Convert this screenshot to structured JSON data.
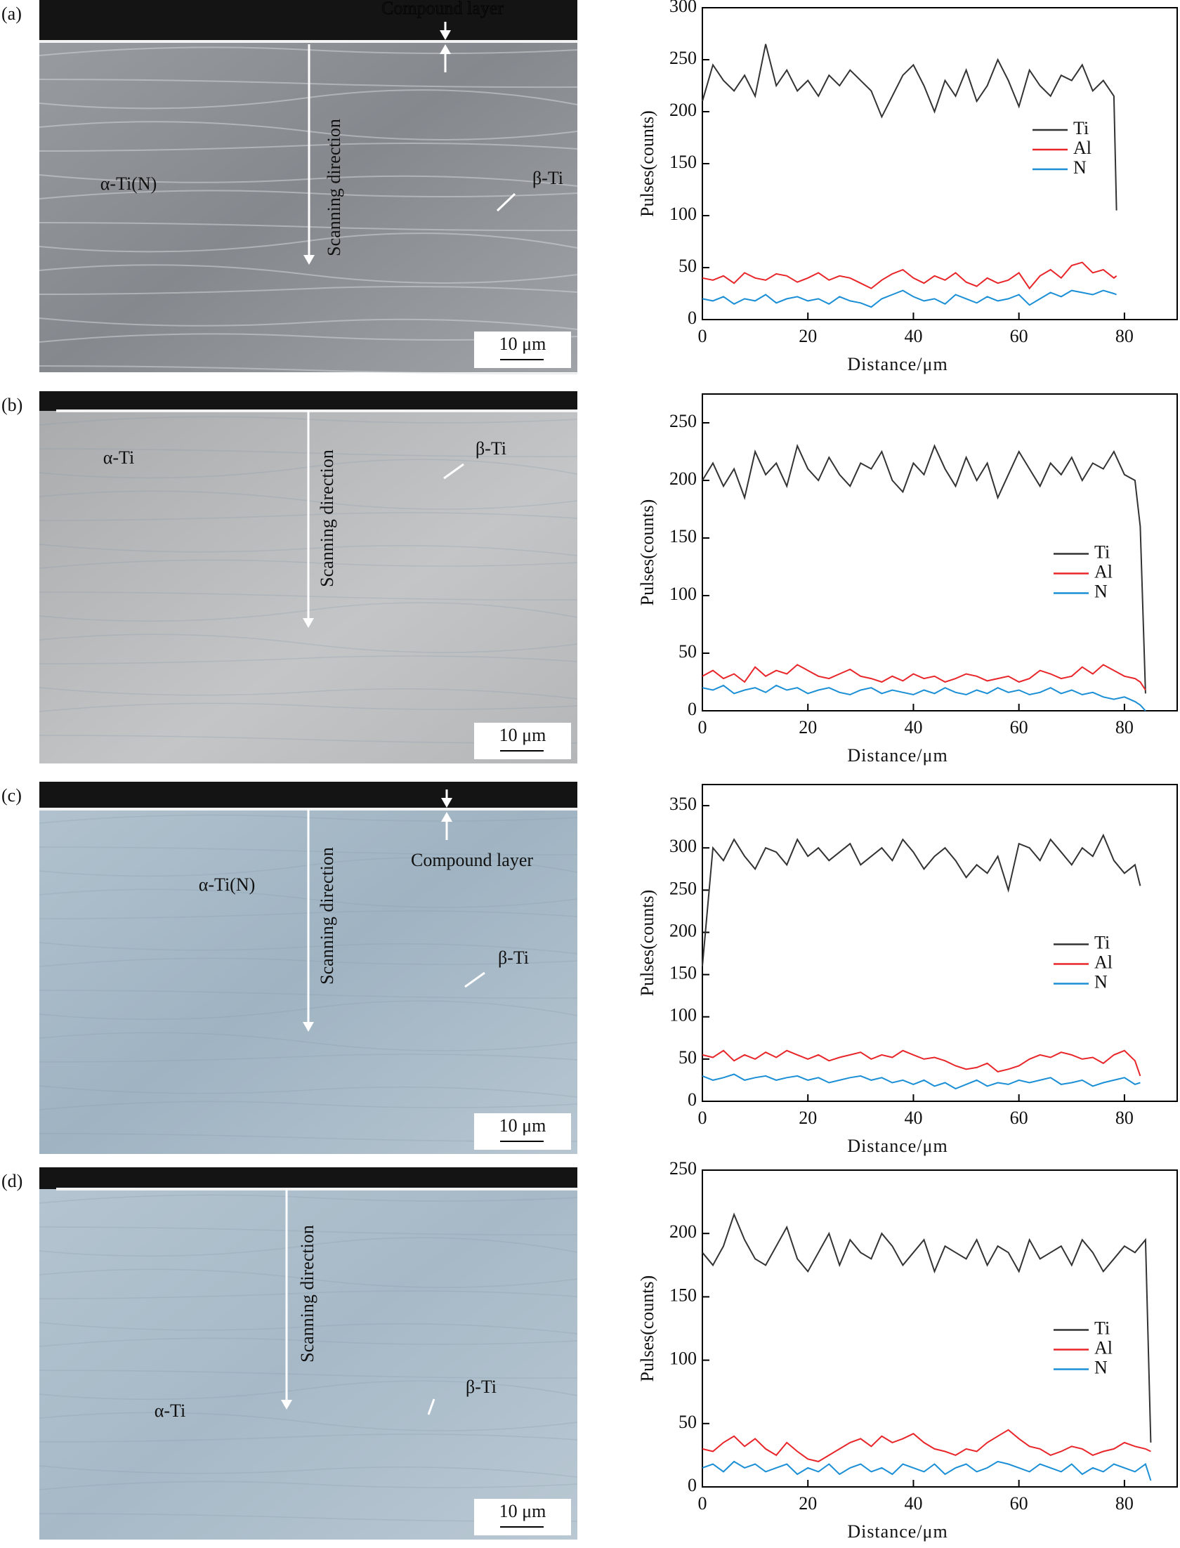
{
  "micrographs": [
    {
      "panel": "(a)",
      "labels": [
        "Compound layer",
        "Scanning direction",
        "α-Ti(N)",
        "β-Ti"
      ],
      "scale_bar": "10 μm"
    },
    {
      "panel": "(b)",
      "labels": [
        "Scanning direction",
        "α-Ti",
        "β-Ti"
      ],
      "scale_bar": "10 μm"
    },
    {
      "panel": "(c)",
      "labels": [
        "Compound layer",
        "Scanning direction",
        "α-Ti(N)",
        "β-Ti"
      ],
      "scale_bar": "10 μm"
    },
    {
      "panel": "(d)",
      "labels": [
        "Scanning direction",
        "α-Ti",
        "β-Ti"
      ],
      "scale_bar": "10 μm"
    }
  ],
  "chart_data": [
    {
      "type": "line",
      "xlabel": "Distance/μm",
      "ylabel": "Pulses(counts)",
      "xlim": [
        0,
        90
      ],
      "ylim": [
        0,
        300
      ],
      "xticks": [
        0,
        20,
        40,
        60,
        80
      ],
      "yticks": [
        0,
        50,
        100,
        150,
        200,
        250,
        300
      ],
      "x": [
        0,
        2,
        4,
        6,
        8,
        10,
        12,
        14,
        16,
        18,
        20,
        22,
        24,
        26,
        28,
        30,
        32,
        34,
        36,
        38,
        40,
        42,
        44,
        46,
        48,
        50,
        52,
        54,
        56,
        58,
        60,
        62,
        64,
        66,
        68,
        70,
        72,
        74,
        76,
        78,
        78.5
      ],
      "series": [
        {
          "name": "Ti",
          "color": "#333333",
          "values": [
            210,
            245,
            230,
            220,
            235,
            215,
            265,
            225,
            240,
            220,
            230,
            215,
            235,
            225,
            240,
            230,
            220,
            195,
            215,
            235,
            245,
            225,
            200,
            230,
            215,
            240,
            210,
            225,
            250,
            230,
            205,
            240,
            225,
            215,
            235,
            230,
            245,
            220,
            230,
            215,
            105
          ]
        },
        {
          "name": "Al",
          "color": "#e8262a",
          "values": [
            40,
            38,
            42,
            35,
            45,
            40,
            38,
            44,
            42,
            36,
            40,
            45,
            38,
            42,
            40,
            35,
            30,
            38,
            44,
            48,
            40,
            35,
            42,
            38,
            45,
            36,
            32,
            40,
            35,
            38,
            45,
            30,
            42,
            48,
            40,
            52,
            55,
            45,
            48,
            40,
            42
          ]
        },
        {
          "name": "N",
          "color": "#1a8fd6",
          "values": [
            20,
            18,
            22,
            15,
            20,
            18,
            24,
            16,
            20,
            22,
            18,
            20,
            15,
            22,
            18,
            16,
            12,
            20,
            24,
            28,
            22,
            18,
            20,
            15,
            24,
            20,
            16,
            22,
            18,
            20,
            24,
            14,
            20,
            26,
            22,
            28,
            26,
            24,
            28,
            25,
            24
          ]
        }
      ]
    },
    {
      "type": "line",
      "xlabel": "Distance/μm",
      "ylabel": "Pulses(counts)",
      "xlim": [
        0,
        90
      ],
      "ylim": [
        0,
        275
      ],
      "xticks": [
        0,
        20,
        40,
        60,
        80
      ],
      "yticks": [
        0,
        50,
        100,
        150,
        200,
        250
      ],
      "x": [
        0,
        2,
        4,
        6,
        8,
        10,
        12,
        14,
        16,
        18,
        20,
        22,
        24,
        26,
        28,
        30,
        32,
        34,
        36,
        38,
        40,
        42,
        44,
        46,
        48,
        50,
        52,
        54,
        56,
        58,
        60,
        62,
        64,
        66,
        68,
        70,
        72,
        74,
        76,
        78,
        80,
        82,
        83,
        84
      ],
      "series": [
        {
          "name": "Ti",
          "color": "#333333",
          "values": [
            200,
            215,
            195,
            210,
            185,
            225,
            205,
            215,
            195,
            230,
            210,
            200,
            220,
            205,
            195,
            215,
            210,
            225,
            200,
            190,
            215,
            205,
            230,
            210,
            195,
            220,
            200,
            215,
            185,
            205,
            225,
            210,
            195,
            215,
            205,
            220,
            200,
            215,
            210,
            225,
            205,
            200,
            160,
            15
          ]
        },
        {
          "name": "Al",
          "color": "#e8262a",
          "values": [
            30,
            35,
            28,
            32,
            25,
            38,
            30,
            35,
            32,
            40,
            35,
            30,
            28,
            32,
            36,
            30,
            28,
            25,
            30,
            26,
            32,
            28,
            30,
            25,
            28,
            32,
            30,
            26,
            28,
            30,
            25,
            28,
            35,
            32,
            28,
            30,
            38,
            32,
            40,
            35,
            30,
            28,
            25,
            18
          ]
        },
        {
          "name": "N",
          "color": "#1a8fd6",
          "values": [
            20,
            18,
            22,
            15,
            18,
            20,
            16,
            22,
            18,
            20,
            15,
            18,
            20,
            16,
            14,
            18,
            20,
            15,
            18,
            16,
            14,
            18,
            15,
            20,
            16,
            14,
            18,
            15,
            20,
            16,
            18,
            14,
            16,
            20,
            15,
            18,
            14,
            16,
            12,
            10,
            12,
            8,
            5,
            0
          ]
        }
      ]
    },
    {
      "type": "line",
      "xlabel": "Distance/μm",
      "ylabel": "Pulses(counts)",
      "xlim": [
        0,
        90
      ],
      "ylim": [
        0,
        375
      ],
      "xticks": [
        0,
        20,
        40,
        60,
        80
      ],
      "yticks": [
        0,
        50,
        100,
        150,
        200,
        250,
        300,
        350
      ],
      "x": [
        0,
        2,
        4,
        6,
        8,
        10,
        12,
        14,
        16,
        18,
        20,
        22,
        24,
        26,
        28,
        30,
        32,
        34,
        36,
        38,
        40,
        42,
        44,
        46,
        48,
        50,
        52,
        54,
        56,
        58,
        60,
        62,
        64,
        66,
        68,
        70,
        72,
        74,
        76,
        78,
        80,
        82,
        83
      ],
      "series": [
        {
          "name": "Ti",
          "color": "#333333",
          "values": [
            160,
            300,
            285,
            310,
            290,
            275,
            300,
            295,
            280,
            310,
            290,
            300,
            285,
            295,
            305,
            280,
            290,
            300,
            285,
            310,
            295,
            275,
            290,
            300,
            285,
            265,
            280,
            270,
            290,
            250,
            305,
            300,
            285,
            310,
            295,
            280,
            300,
            290,
            315,
            285,
            270,
            280,
            255
          ]
        },
        {
          "name": "Al",
          "color": "#e8262a",
          "values": [
            55,
            52,
            60,
            48,
            55,
            50,
            58,
            52,
            60,
            55,
            50,
            55,
            48,
            52,
            55,
            58,
            50,
            55,
            52,
            60,
            55,
            50,
            52,
            48,
            42,
            38,
            40,
            45,
            35,
            38,
            42,
            50,
            55,
            52,
            58,
            55,
            50,
            52,
            45,
            55,
            60,
            48,
            30
          ]
        },
        {
          "name": "N",
          "color": "#1a8fd6",
          "values": [
            30,
            25,
            28,
            32,
            25,
            28,
            30,
            25,
            28,
            30,
            25,
            28,
            22,
            25,
            28,
            30,
            25,
            28,
            22,
            25,
            20,
            25,
            18,
            22,
            15,
            20,
            25,
            18,
            22,
            20,
            25,
            22,
            25,
            28,
            20,
            22,
            25,
            18,
            22,
            25,
            28,
            20,
            22
          ]
        }
      ]
    },
    {
      "type": "line",
      "xlabel": "Distance/μm",
      "ylabel": "Pulses(counts)",
      "xlim": [
        0,
        90
      ],
      "ylim": [
        0,
        250
      ],
      "xticks": [
        0,
        20,
        40,
        60,
        80
      ],
      "yticks": [
        0,
        50,
        100,
        150,
        200,
        250
      ],
      "x": [
        0,
        2,
        4,
        6,
        8,
        10,
        12,
        14,
        16,
        18,
        20,
        22,
        24,
        26,
        28,
        30,
        32,
        34,
        36,
        38,
        40,
        42,
        44,
        46,
        48,
        50,
        52,
        54,
        56,
        58,
        60,
        62,
        64,
        66,
        68,
        70,
        72,
        74,
        76,
        78,
        80,
        82,
        84,
        85
      ],
      "series": [
        {
          "name": "Ti",
          "color": "#333333",
          "values": [
            185,
            175,
            190,
            215,
            195,
            180,
            175,
            190,
            205,
            180,
            170,
            185,
            200,
            175,
            195,
            185,
            180,
            200,
            190,
            175,
            185,
            195,
            170,
            190,
            185,
            180,
            195,
            175,
            190,
            185,
            170,
            195,
            180,
            185,
            190,
            175,
            195,
            185,
            170,
            180,
            190,
            185,
            195,
            35
          ]
        },
        {
          "name": "Al",
          "color": "#e8262a",
          "values": [
            30,
            28,
            35,
            40,
            32,
            38,
            30,
            25,
            35,
            28,
            22,
            20,
            25,
            30,
            35,
            38,
            32,
            40,
            35,
            38,
            42,
            35,
            30,
            28,
            25,
            30,
            28,
            35,
            40,
            45,
            38,
            32,
            30,
            25,
            28,
            32,
            30,
            25,
            28,
            30,
            35,
            32,
            30,
            28
          ]
        },
        {
          "name": "N",
          "color": "#1a8fd6",
          "values": [
            15,
            18,
            12,
            20,
            15,
            18,
            12,
            15,
            18,
            10,
            15,
            12,
            18,
            10,
            15,
            18,
            12,
            15,
            10,
            18,
            15,
            12,
            18,
            10,
            15,
            18,
            12,
            15,
            20,
            18,
            15,
            12,
            18,
            15,
            12,
            18,
            10,
            15,
            12,
            18,
            15,
            12,
            18,
            5
          ]
        }
      ]
    }
  ]
}
